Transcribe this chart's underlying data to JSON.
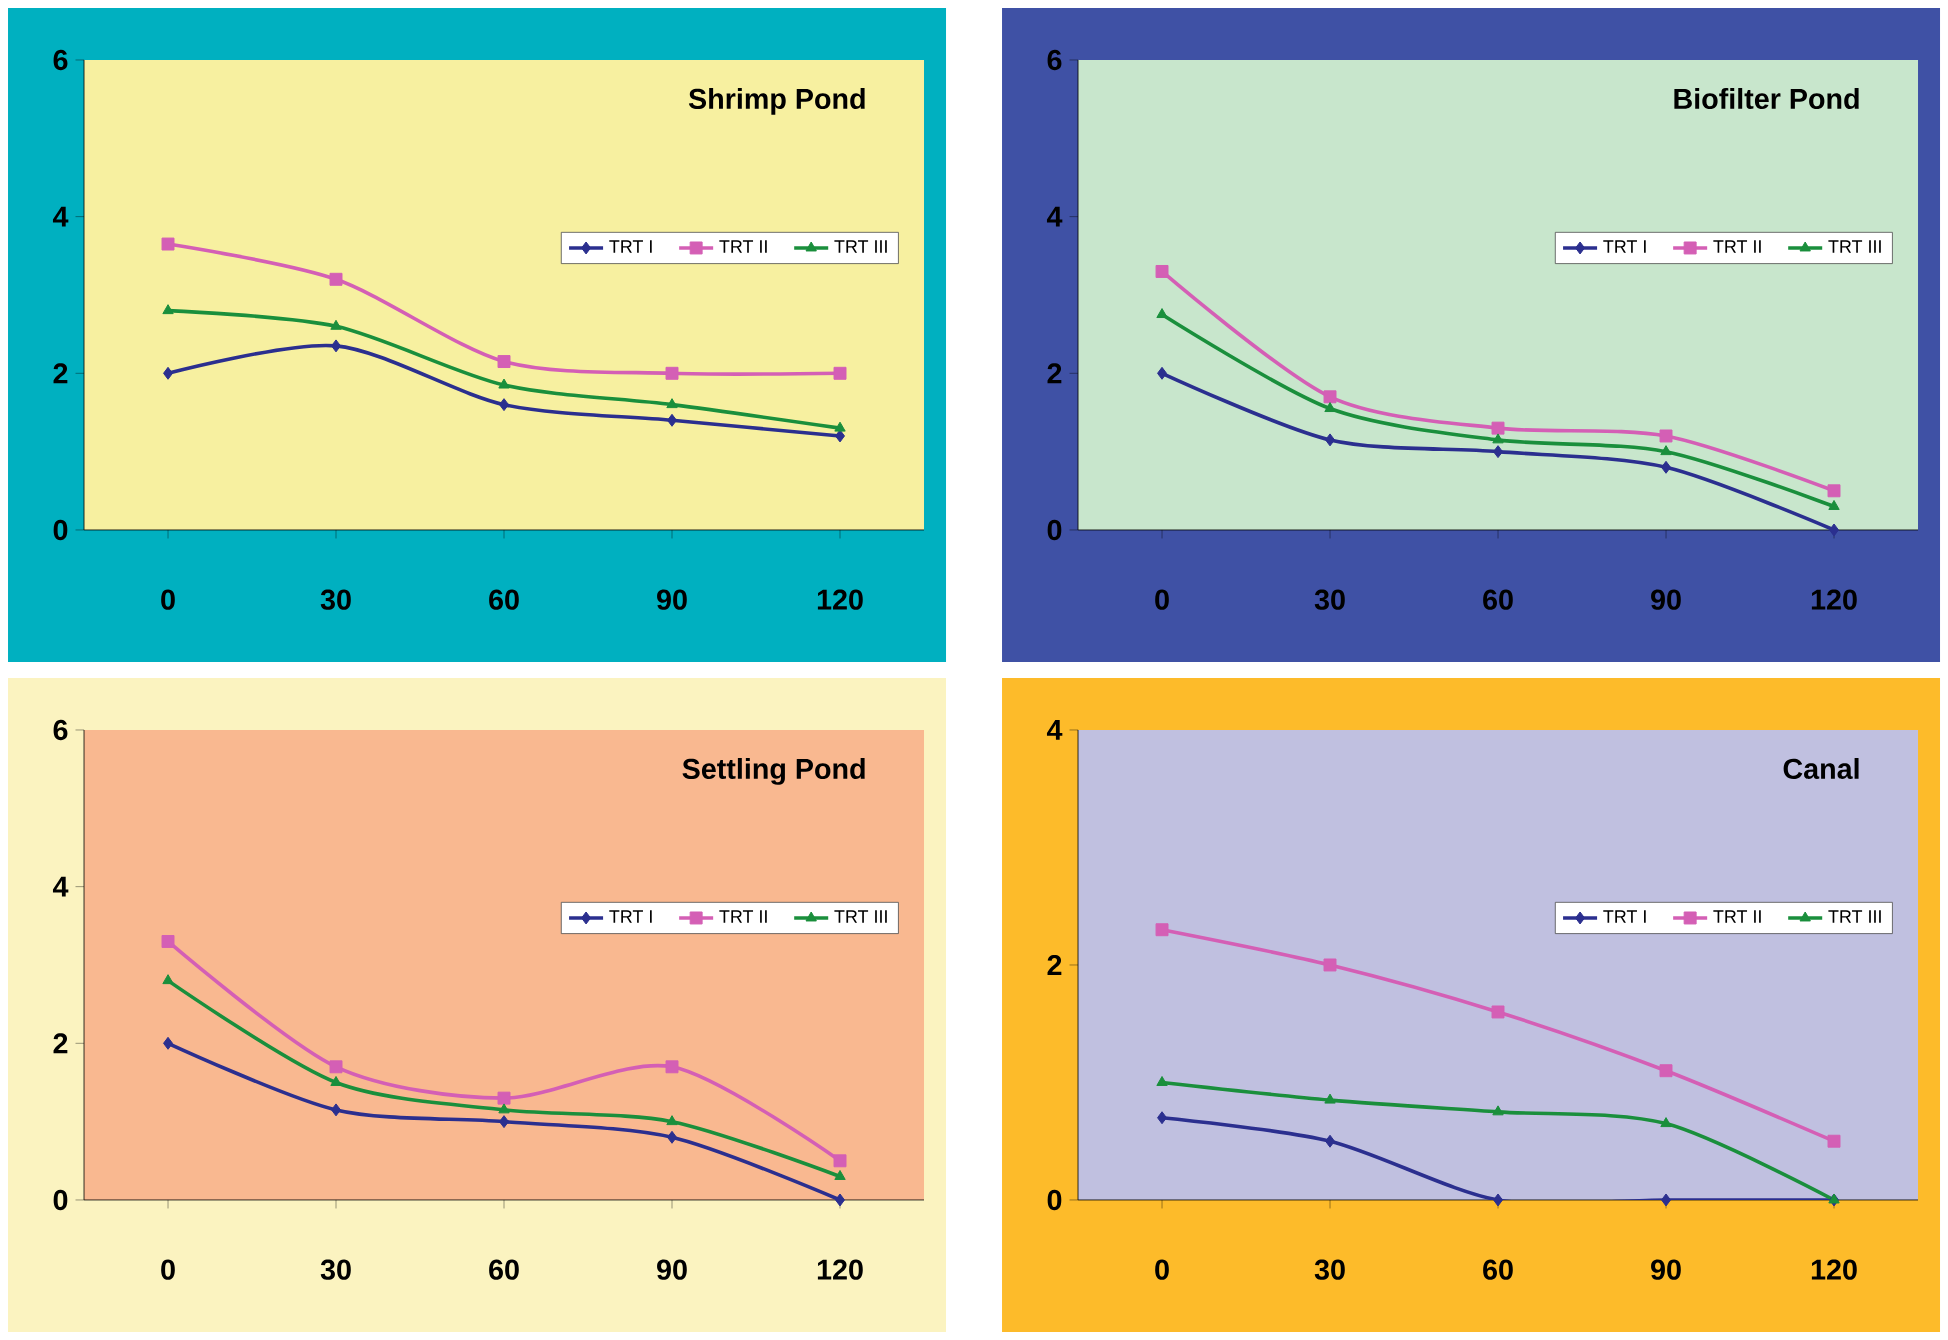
{
  "chart_data": [
    {
      "type": "line",
      "title": "Shrimp Pond",
      "categories": [
        "0",
        "30",
        "60",
        "90",
        "120"
      ],
      "ylim": [
        0,
        6
      ],
      "yticks": [
        0,
        2,
        4,
        6
      ],
      "legend": "right",
      "series": [
        {
          "name": "TRT I",
          "color": "#2b2f8f",
          "marker": "diamond",
          "values": [
            2.0,
            2.35,
            1.6,
            1.4,
            1.2
          ]
        },
        {
          "name": "TRT II",
          "color": "#d45fb5",
          "marker": "square",
          "values": [
            3.65,
            3.2,
            2.15,
            2.0,
            2.0
          ]
        },
        {
          "name": "TRT III",
          "color": "#1a8f3c",
          "marker": "triangle",
          "values": [
            2.8,
            2.6,
            1.85,
            1.6,
            1.3
          ]
        }
      ]
    },
    {
      "type": "line",
      "title": "Biofilter Pond",
      "categories": [
        "0",
        "30",
        "60",
        "90",
        "120"
      ],
      "ylim": [
        0,
        6
      ],
      "yticks": [
        0,
        2,
        4,
        6
      ],
      "legend": "right",
      "series": [
        {
          "name": "TRT I",
          "color": "#2b2f8f",
          "marker": "diamond",
          "values": [
            2.0,
            1.15,
            1.0,
            0.8,
            0.0
          ]
        },
        {
          "name": "TRT II",
          "color": "#d45fb5",
          "marker": "square",
          "values": [
            3.3,
            1.7,
            1.3,
            1.2,
            0.5
          ]
        },
        {
          "name": "TRT III",
          "color": "#1a8f3c",
          "marker": "triangle",
          "values": [
            2.75,
            1.55,
            1.15,
            1.0,
            0.3
          ]
        }
      ]
    },
    {
      "type": "line",
      "title": "Settling Pond",
      "categories": [
        "0",
        "30",
        "60",
        "90",
        "120"
      ],
      "ylim": [
        0,
        6
      ],
      "yticks": [
        0,
        2,
        4,
        6
      ],
      "legend": "right",
      "series": [
        {
          "name": "TRT I",
          "color": "#2b2f8f",
          "marker": "diamond",
          "values": [
            2.0,
            1.15,
            1.0,
            0.8,
            0.0
          ]
        },
        {
          "name": "TRT II",
          "color": "#d45fb5",
          "marker": "square",
          "values": [
            3.3,
            1.7,
            1.3,
            1.7,
            0.5
          ]
        },
        {
          "name": "TRT III",
          "color": "#1a8f3c",
          "marker": "triangle",
          "values": [
            2.8,
            1.5,
            1.15,
            1.0,
            0.3
          ]
        }
      ]
    },
    {
      "type": "line",
      "title": "Canal",
      "categories": [
        "0",
        "30",
        "60",
        "90",
        "120"
      ],
      "ylim": [
        0,
        4
      ],
      "yticks": [
        0,
        2,
        4
      ],
      "legend": "right",
      "series": [
        {
          "name": "TRT I",
          "color": "#2b2f8f",
          "marker": "diamond",
          "values": [
            0.7,
            0.5,
            0.0,
            0.0,
            0.0
          ]
        },
        {
          "name": "TRT II",
          "color": "#d45fb5",
          "marker": "square",
          "values": [
            2.3,
            2.0,
            1.6,
            1.1,
            0.5
          ]
        },
        {
          "name": "TRT III",
          "color": "#1a8f3c",
          "marker": "triangle",
          "values": [
            1.0,
            0.85,
            0.75,
            0.65,
            0.0
          ]
        }
      ]
    }
  ]
}
